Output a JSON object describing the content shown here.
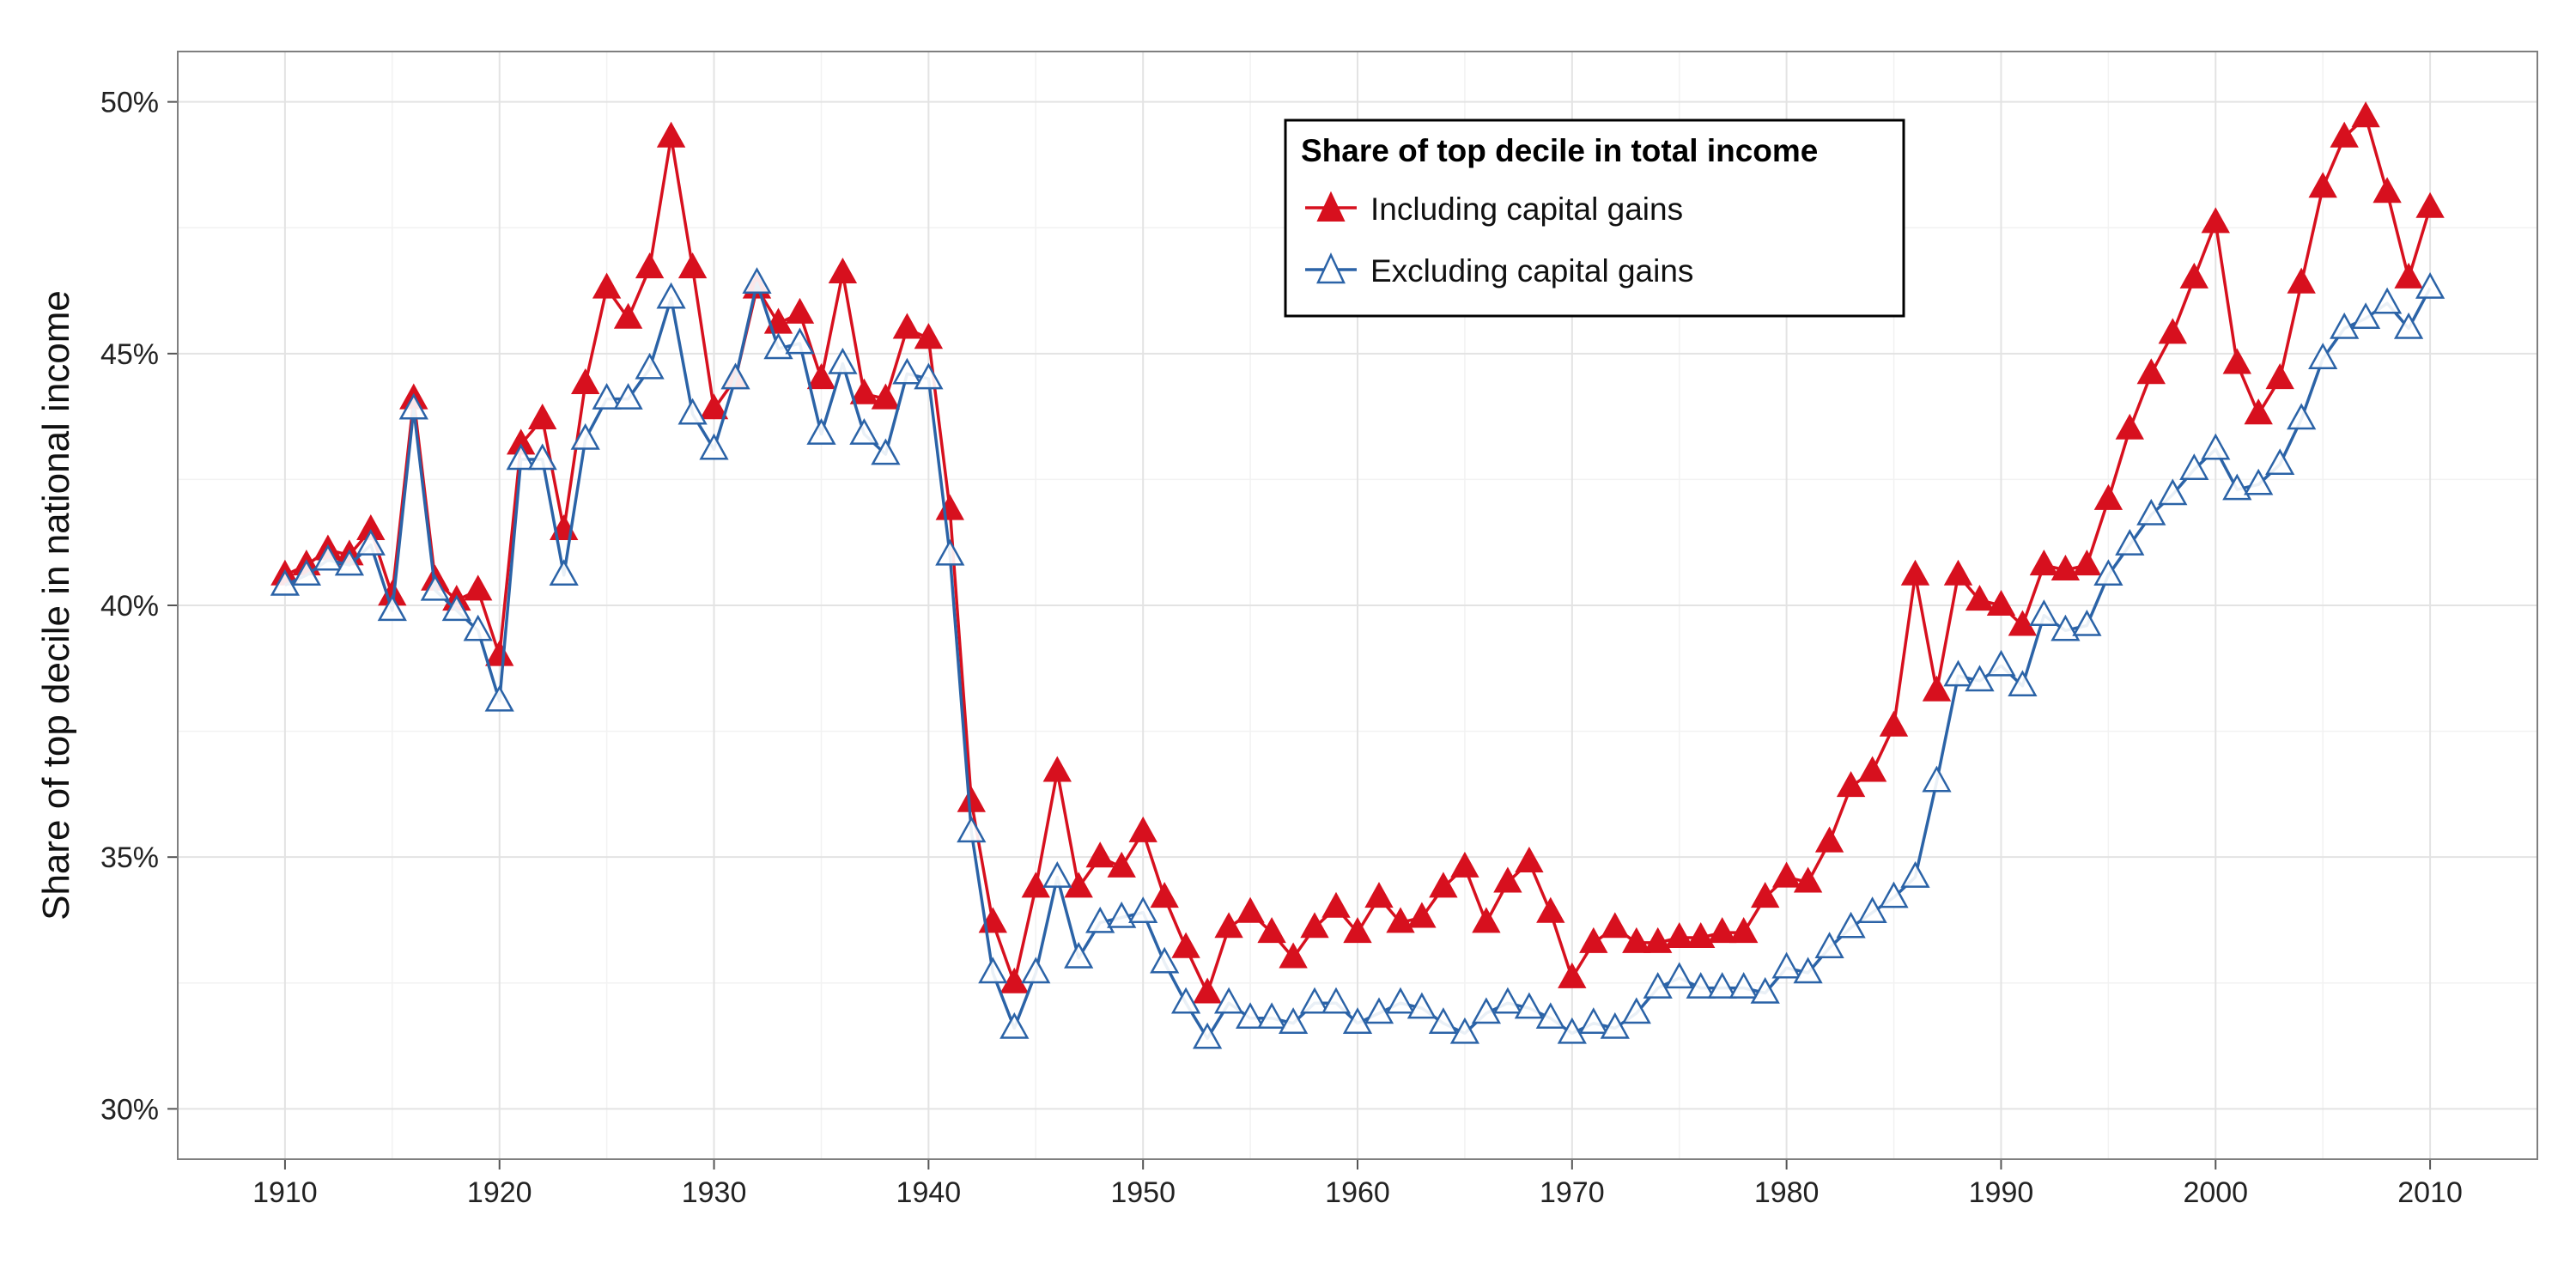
{
  "chart_data": {
    "type": "line",
    "title": "",
    "xlabel": "",
    "ylabel": "Share of top decile in national income",
    "xlim": [
      1905,
      2015
    ],
    "ylim": [
      29.0,
      51.0
    ],
    "x_ticks": [
      1910,
      1920,
      1930,
      1940,
      1950,
      1960,
      1970,
      1980,
      1990,
      2000,
      2010
    ],
    "y_ticks": [
      30,
      35,
      40,
      45,
      50
    ],
    "y_tick_labels": [
      "30%",
      "35%",
      "40%",
      "45%",
      "50%"
    ],
    "grid": true,
    "legend": {
      "title": "Share of top decile in total income",
      "position": "top-center"
    },
    "x": [
      1910,
      1911,
      1912,
      1913,
      1914,
      1915,
      1916,
      1917,
      1918,
      1919,
      1920,
      1921,
      1922,
      1923,
      1924,
      1925,
      1926,
      1927,
      1928,
      1929,
      1930,
      1931,
      1932,
      1933,
      1934,
      1935,
      1936,
      1937,
      1938,
      1939,
      1940,
      1941,
      1942,
      1943,
      1944,
      1945,
      1946,
      1947,
      1948,
      1949,
      1950,
      1951,
      1952,
      1953,
      1954,
      1955,
      1956,
      1957,
      1958,
      1959,
      1960,
      1961,
      1962,
      1963,
      1964,
      1965,
      1966,
      1967,
      1968,
      1969,
      1970,
      1971,
      1972,
      1973,
      1974,
      1975,
      1976,
      1977,
      1978,
      1979,
      1980,
      1981,
      1982,
      1983,
      1984,
      1985,
      1986,
      1987,
      1988,
      1989,
      1990,
      1991,
      1992,
      1993,
      1994,
      1995,
      1996,
      1997,
      1998,
      1999,
      2000,
      2001,
      2002,
      2003,
      2004,
      2005,
      2006,
      2007,
      2008,
      2009,
      2010
    ],
    "series": [
      {
        "name": "Including capital gains",
        "color": "#d7101e",
        "marker": "filled-triangle",
        "values": [
          40.6,
          40.8,
          41.1,
          41.0,
          41.5,
          40.2,
          44.1,
          40.5,
          40.1,
          40.3,
          39.0,
          43.2,
          43.7,
          41.5,
          44.4,
          46.3,
          45.7,
          46.7,
          49.3,
          46.7,
          43.9,
          44.5,
          46.3,
          45.6,
          45.8,
          44.5,
          46.6,
          44.2,
          44.1,
          45.5,
          45.3,
          41.9,
          36.1,
          33.7,
          32.5,
          34.4,
          36.7,
          34.4,
          35.0,
          34.8,
          35.5,
          34.2,
          33.2,
          32.3,
          33.6,
          33.9,
          33.5,
          33.0,
          33.6,
          34.0,
          33.5,
          34.2,
          33.7,
          33.8,
          34.4,
          34.8,
          33.7,
          34.5,
          34.9,
          33.9,
          32.6,
          33.3,
          33.6,
          33.3,
          33.3,
          33.4,
          33.4,
          33.5,
          33.5,
          34.2,
          34.6,
          34.5,
          35.3,
          36.4,
          36.7,
          37.6,
          40.6,
          38.3,
          40.6,
          40.1,
          40.0,
          39.6,
          40.8,
          40.7,
          40.8,
          42.1,
          43.5,
          44.6,
          45.4,
          46.5,
          47.6,
          44.8,
          43.8,
          44.5,
          46.4,
          48.3,
          49.3,
          49.7,
          48.2,
          46.5,
          47.9
        ]
      },
      {
        "name": "Excluding capital gains",
        "color": "#2b63a7",
        "marker": "open-triangle",
        "values": [
          40.4,
          40.6,
          40.9,
          40.8,
          41.2,
          39.9,
          43.9,
          40.3,
          39.9,
          39.5,
          38.1,
          42.9,
          42.9,
          40.6,
          43.3,
          44.1,
          44.1,
          44.7,
          46.1,
          43.8,
          43.1,
          44.5,
          46.4,
          45.1,
          45.2,
          43.4,
          44.8,
          43.4,
          43.0,
          44.6,
          44.5,
          41.0,
          35.5,
          32.7,
          31.6,
          32.7,
          34.6,
          33.0,
          33.7,
          33.8,
          33.9,
          32.9,
          32.1,
          31.4,
          32.1,
          31.8,
          31.8,
          31.7,
          32.1,
          32.1,
          31.7,
          31.9,
          32.1,
          32.0,
          31.7,
          31.5,
          31.9,
          32.1,
          32.0,
          31.8,
          31.5,
          31.7,
          31.6,
          31.9,
          32.4,
          32.6,
          32.4,
          32.4,
          32.4,
          32.3,
          32.8,
          32.7,
          33.2,
          33.6,
          33.9,
          34.2,
          34.6,
          36.5,
          38.6,
          38.5,
          38.8,
          38.4,
          39.8,
          39.5,
          39.6,
          40.6,
          41.2,
          41.8,
          42.2,
          42.7,
          43.1,
          42.3,
          42.4,
          42.8,
          43.7,
          44.9,
          45.5,
          45.7,
          46.0,
          45.5,
          46.3
        ]
      }
    ]
  }
}
